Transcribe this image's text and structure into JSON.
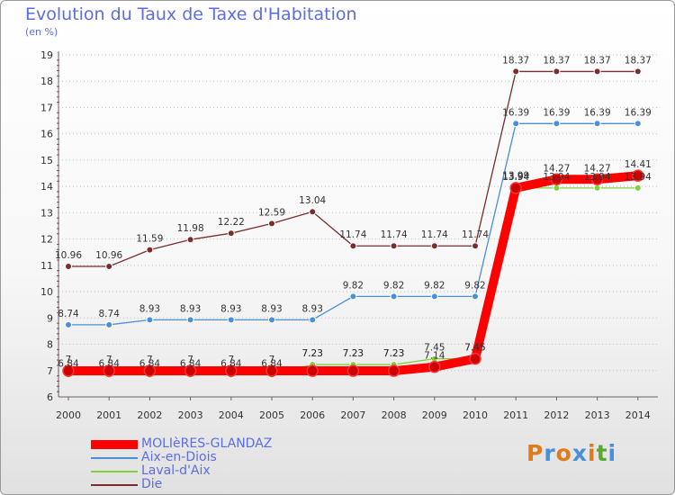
{
  "header": {
    "title": "Evolution du Taux de Taxe d'Habitation",
    "subtitle": "(en %)"
  },
  "logo": {
    "text": "Proxiti"
  },
  "chart_data": {
    "type": "line",
    "title": "Evolution du Taux de Taxe d'Habitation",
    "ylabel": "(en %)",
    "x": [
      "2000",
      "2001",
      "2002",
      "2003",
      "2004",
      "2005",
      "2006",
      "2007",
      "2008",
      "2009",
      "2010",
      "2011",
      "2012",
      "2013",
      "2014"
    ],
    "yticks": [
      "6",
      "7",
      "8",
      "9",
      "10",
      "11",
      "12",
      "13",
      "14",
      "15",
      "16",
      "17",
      "18",
      "19"
    ],
    "ylim": [
      6,
      19
    ],
    "grid": "horizontal dotted",
    "legend": "bottom-left",
    "series": [
      {
        "name": "MOLIèRES-GLANDAZ",
        "color": "#ff0000",
        "values": [
          6.99,
          6.99,
          6.99,
          6.99,
          6.99,
          6.99,
          6.99,
          6.99,
          6.99,
          7.14,
          7.45,
          13.94,
          14.27,
          14.27,
          14.41
        ],
        "labels": [
          "7",
          "7",
          "7",
          "7",
          "7",
          "7",
          "",
          "",
          "",
          "",
          "",
          "13.94",
          "14.27",
          "14.27",
          "14.41"
        ]
      },
      {
        "name": "Aix-en-Diois",
        "color": "#4a90d9",
        "values": [
          8.74,
          8.74,
          8.93,
          8.93,
          8.93,
          8.93,
          8.93,
          9.82,
          9.82,
          9.82,
          9.82,
          16.39,
          16.39,
          16.39,
          16.39
        ],
        "labels": [
          "8.74",
          "8.74",
          "8.93",
          "8.93",
          "8.93",
          "8.93",
          "8.93",
          "9.82",
          "9.82",
          "9.82",
          "9.82",
          "16.39",
          "16.39",
          "16.39",
          "16.39"
        ]
      },
      {
        "name": "Laval-d'Aix",
        "color": "#7fd13b",
        "values": [
          6.84,
          6.84,
          6.84,
          6.84,
          6.84,
          6.84,
          7.23,
          7.23,
          7.23,
          7.45,
          7.45,
          13.94,
          13.94,
          13.94,
          13.94
        ],
        "labels": [
          "6.84",
          "6.84",
          "6.84",
          "6.84",
          "6.84",
          "6.84",
          "7.23",
          "7.23",
          "7.23",
          "7.45",
          "7.45",
          "13.94",
          "13.94",
          "13.94",
          "13.94"
        ]
      },
      {
        "name": "Die",
        "color": "#7b2d2d",
        "values": [
          10.96,
          10.96,
          11.59,
          11.98,
          12.22,
          12.59,
          13.04,
          11.74,
          11.74,
          11.74,
          11.74,
          18.37,
          18.37,
          18.37,
          18.37
        ],
        "labels": [
          "10.96",
          "10.96",
          "11.59",
          "11.98",
          "12.22",
          "12.59",
          "13.04",
          "11.74",
          "11.74",
          "11.74",
          "11.74",
          "18.37",
          "18.37",
          "18.37",
          "18.37"
        ]
      }
    ],
    "extra_labels": [
      {
        "year": "2006",
        "text": "7.23"
      },
      {
        "year": "2007",
        "text": "7.23"
      },
      {
        "year": "2008",
        "text": "7.23"
      },
      {
        "year": "2009",
        "text": "7.14"
      },
      {
        "year": "2010",
        "text": "7.45"
      },
      {
        "year": "2011",
        "text": "13.99"
      }
    ]
  }
}
